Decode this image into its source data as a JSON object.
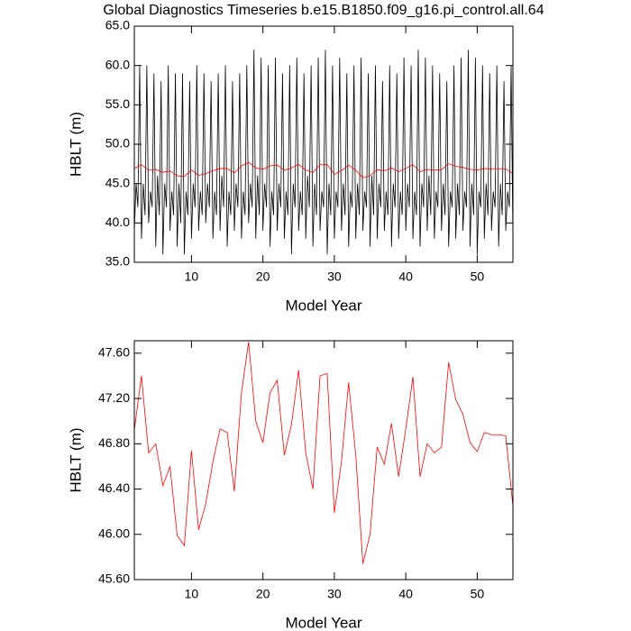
{
  "chart_data": [
    {
      "type": "line",
      "title": "Global Diagnostics Timeseries b.e15.B1850.f09_g16.pi_control.all.64",
      "x_label": "Model Year",
      "y_label": "HBLT (m)",
      "xlim": [
        2,
        55
      ],
      "xticks": [
        10,
        20,
        30,
        40,
        50
      ],
      "ylim": [
        35,
        65
      ],
      "yticks": [
        {
          "value": 35,
          "label": "35.0"
        },
        {
          "value": 40,
          "label": "40.0"
        },
        {
          "value": 45,
          "label": "45.0"
        },
        {
          "value": 50,
          "label": "50.0"
        },
        {
          "value": 55,
          "label": "55.0"
        },
        {
          "value": 60,
          "label": "60.0"
        },
        {
          "value": 65,
          "label": "65.0"
        }
      ],
      "series": [
        {
          "color": "#000000",
          "x": [
            2,
            2.25,
            2.5,
            2.75,
            3,
            3.25,
            3.5,
            3.75,
            4,
            4.25,
            4.5,
            4.75,
            5,
            5.25,
            5.5,
            5.75,
            6,
            6.25,
            6.5,
            6.75,
            7,
            7.25,
            7.5,
            7.75,
            8,
            8.25,
            8.5,
            8.75,
            9,
            9.25,
            9.5,
            9.75,
            10,
            10.25,
            10.5,
            10.75,
            11,
            11.25,
            11.5,
            11.75,
            12,
            12.25,
            12.5,
            12.75,
            13,
            13.25,
            13.5,
            13.75,
            14,
            14.25,
            14.5,
            14.75,
            15,
            15.25,
            15.5,
            15.75,
            16,
            16.25,
            16.5,
            16.75,
            17,
            17.25,
            17.5,
            17.75,
            18,
            18.25,
            18.5,
            18.75,
            19,
            19.25,
            19.5,
            19.75,
            20,
            20.25,
            20.5,
            20.75,
            21,
            21.25,
            21.5,
            21.75,
            22,
            22.25,
            22.5,
            22.75,
            23,
            23.25,
            23.5,
            23.75,
            24,
            24.25,
            24.5,
            24.75,
            25,
            25.25,
            25.5,
            25.75,
            26,
            26.25,
            26.5,
            26.75,
            27,
            27.25,
            27.5,
            27.75,
            28,
            28.25,
            28.5,
            28.75,
            29,
            29.25,
            29.5,
            29.75,
            30,
            30.25,
            30.5,
            30.75,
            31,
            31.25,
            31.5,
            31.75,
            32,
            32.25,
            32.5,
            32.75,
            33,
            33.25,
            33.5,
            33.75,
            34,
            34.25,
            34.5,
            34.75,
            35,
            35.25,
            35.5,
            35.75,
            36,
            36.25,
            36.5,
            36.75,
            37,
            37.25,
            37.5,
            37.75,
            38,
            38.25,
            38.5,
            38.75,
            39,
            39.25,
            39.5,
            39.75,
            40,
            40.25,
            40.5,
            40.75,
            41,
            41.25,
            41.5,
            41.75,
            42,
            42.25,
            42.5,
            42.75,
            43,
            43.25,
            43.5,
            43.75,
            44,
            44.25,
            44.5,
            44.75,
            45,
            45.25,
            45.5,
            45.75,
            46,
            46.25,
            46.5,
            46.75,
            47,
            47.25,
            47.5,
            47.75,
            48,
            48.25,
            48.5,
            48.75,
            49,
            49.25,
            49.5,
            49.75,
            50,
            50.25,
            50.5,
            50.75,
            51,
            51.25,
            51.5,
            51.75,
            52,
            52.25,
            52.5,
            52.75,
            53,
            53.25,
            53.5,
            53.75,
            54,
            54.25,
            54.5,
            54.75,
            55
          ],
          "values": [
            39,
            45,
            42,
            60,
            38,
            45,
            41,
            60,
            40,
            44,
            42,
            59,
            37,
            46,
            41,
            58,
            36,
            45,
            42,
            60,
            39,
            44,
            41,
            59,
            37,
            45,
            40,
            59,
            36,
            44,
            41,
            58,
            38,
            45,
            42,
            60,
            39,
            44,
            41,
            59,
            40,
            45,
            42,
            58,
            38,
            44,
            41,
            59,
            39,
            46,
            42,
            60,
            37,
            44,
            41,
            58,
            39,
            45,
            42,
            59,
            38,
            44,
            41,
            60,
            40,
            45,
            42,
            62,
            38,
            46,
            41,
            61,
            39,
            45,
            42,
            60,
            37,
            44,
            41,
            61,
            39,
            45,
            42,
            59,
            38,
            44,
            41,
            60,
            36,
            45,
            42,
            61,
            39,
            44,
            41,
            59,
            38,
            46,
            42,
            60,
            37,
            45,
            41,
            61,
            39,
            44,
            42,
            62,
            36,
            45,
            41,
            60,
            38,
            44,
            42,
            61,
            39,
            45,
            41,
            59,
            37,
            44,
            42,
            60,
            38,
            45,
            41,
            61,
            39,
            44,
            42,
            59,
            37,
            46,
            41,
            60,
            38,
            45,
            42,
            58,
            39,
            44,
            41,
            60,
            37,
            45,
            42,
            59,
            38,
            44,
            41,
            61,
            39,
            45,
            42,
            60,
            38,
            44,
            41,
            62,
            37,
            45,
            42,
            61,
            39,
            46,
            41,
            60,
            38,
            44,
            42,
            59,
            39,
            45,
            41,
            58,
            37,
            44,
            42,
            60,
            38,
            45,
            41,
            61,
            39,
            44,
            42,
            62,
            37,
            45,
            41,
            61,
            36,
            44,
            42,
            60,
            38,
            45,
            41,
            59,
            39,
            44,
            42,
            60,
            37,
            45,
            41,
            58,
            39,
            44,
            42,
            60,
            38
          ]
        },
        {
          "color": "#ff0000",
          "x": [
            2,
            3,
            4,
            5,
            6,
            7,
            8,
            9,
            10,
            11,
            12,
            13,
            14,
            15,
            16,
            17,
            18,
            19,
            20,
            21,
            22,
            23,
            24,
            25,
            26,
            27,
            28,
            29,
            30,
            31,
            32,
            33,
            34,
            35,
            36,
            37,
            38,
            39,
            40,
            41,
            42,
            43,
            44,
            45,
            46,
            47,
            48,
            49,
            50,
            51,
            52,
            53,
            54,
            55
          ],
          "values": [
            46.92,
            47.4,
            46.72,
            46.8,
            46.43,
            46.6,
            45.99,
            45.9,
            46.74,
            46.04,
            46.27,
            46.64,
            46.93,
            46.9,
            46.38,
            47.25,
            47.7,
            47.0,
            46.81,
            47.25,
            47.36,
            46.7,
            46.97,
            47.45,
            46.72,
            46.4,
            47.4,
            47.42,
            46.19,
            46.64,
            47.34,
            46.7,
            45.74,
            46.0,
            46.77,
            46.62,
            46.98,
            46.51,
            46.93,
            47.39,
            46.51,
            46.8,
            46.72,
            46.77,
            47.52,
            47.19,
            47.06,
            46.81,
            46.73,
            46.9,
            46.88,
            46.88,
            46.87,
            46.25
          ]
        }
      ]
    },
    {
      "type": "line",
      "x_label": "Model Year",
      "y_label": "HBLT (m)",
      "xlim": [
        2,
        55
      ],
      "xticks": [
        10,
        20,
        30,
        40,
        50
      ],
      "ylim": [
        45.6,
        47.71
      ],
      "yticks": [
        {
          "value": 45.6,
          "label": "45.60"
        },
        {
          "value": 46,
          "label": "46.00"
        },
        {
          "value": 46.4,
          "label": "46.40"
        },
        {
          "value": 46.8,
          "label": "46.80"
        },
        {
          "value": 47.2,
          "label": "47.20"
        },
        {
          "value": 47.6,
          "label": "47.60"
        }
      ],
      "series": [
        {
          "color": "#ff0000",
          "x": [
            2,
            3,
            4,
            5,
            6,
            7,
            8,
            9,
            10,
            11,
            12,
            13,
            14,
            15,
            16,
            17,
            18,
            19,
            20,
            21,
            22,
            23,
            24,
            25,
            26,
            27,
            28,
            29,
            30,
            31,
            32,
            33,
            34,
            35,
            36,
            37,
            38,
            39,
            40,
            41,
            42,
            43,
            44,
            45,
            46,
            47,
            48,
            49,
            50,
            51,
            52,
            53,
            54,
            55
          ],
          "values": [
            46.92,
            47.4,
            46.72,
            46.8,
            46.43,
            46.6,
            45.99,
            45.9,
            46.74,
            46.04,
            46.27,
            46.64,
            46.93,
            46.9,
            46.38,
            47.25,
            47.7,
            47.0,
            46.81,
            47.25,
            47.36,
            46.7,
            46.97,
            47.45,
            46.72,
            46.4,
            47.4,
            47.42,
            46.19,
            46.64,
            47.34,
            46.7,
            45.74,
            46.0,
            46.77,
            46.62,
            46.98,
            46.51,
            46.93,
            47.39,
            46.51,
            46.8,
            46.72,
            46.77,
            47.52,
            47.19,
            47.06,
            46.81,
            46.73,
            46.9,
            46.88,
            46.88,
            46.87,
            46.25
          ]
        }
      ]
    }
  ]
}
